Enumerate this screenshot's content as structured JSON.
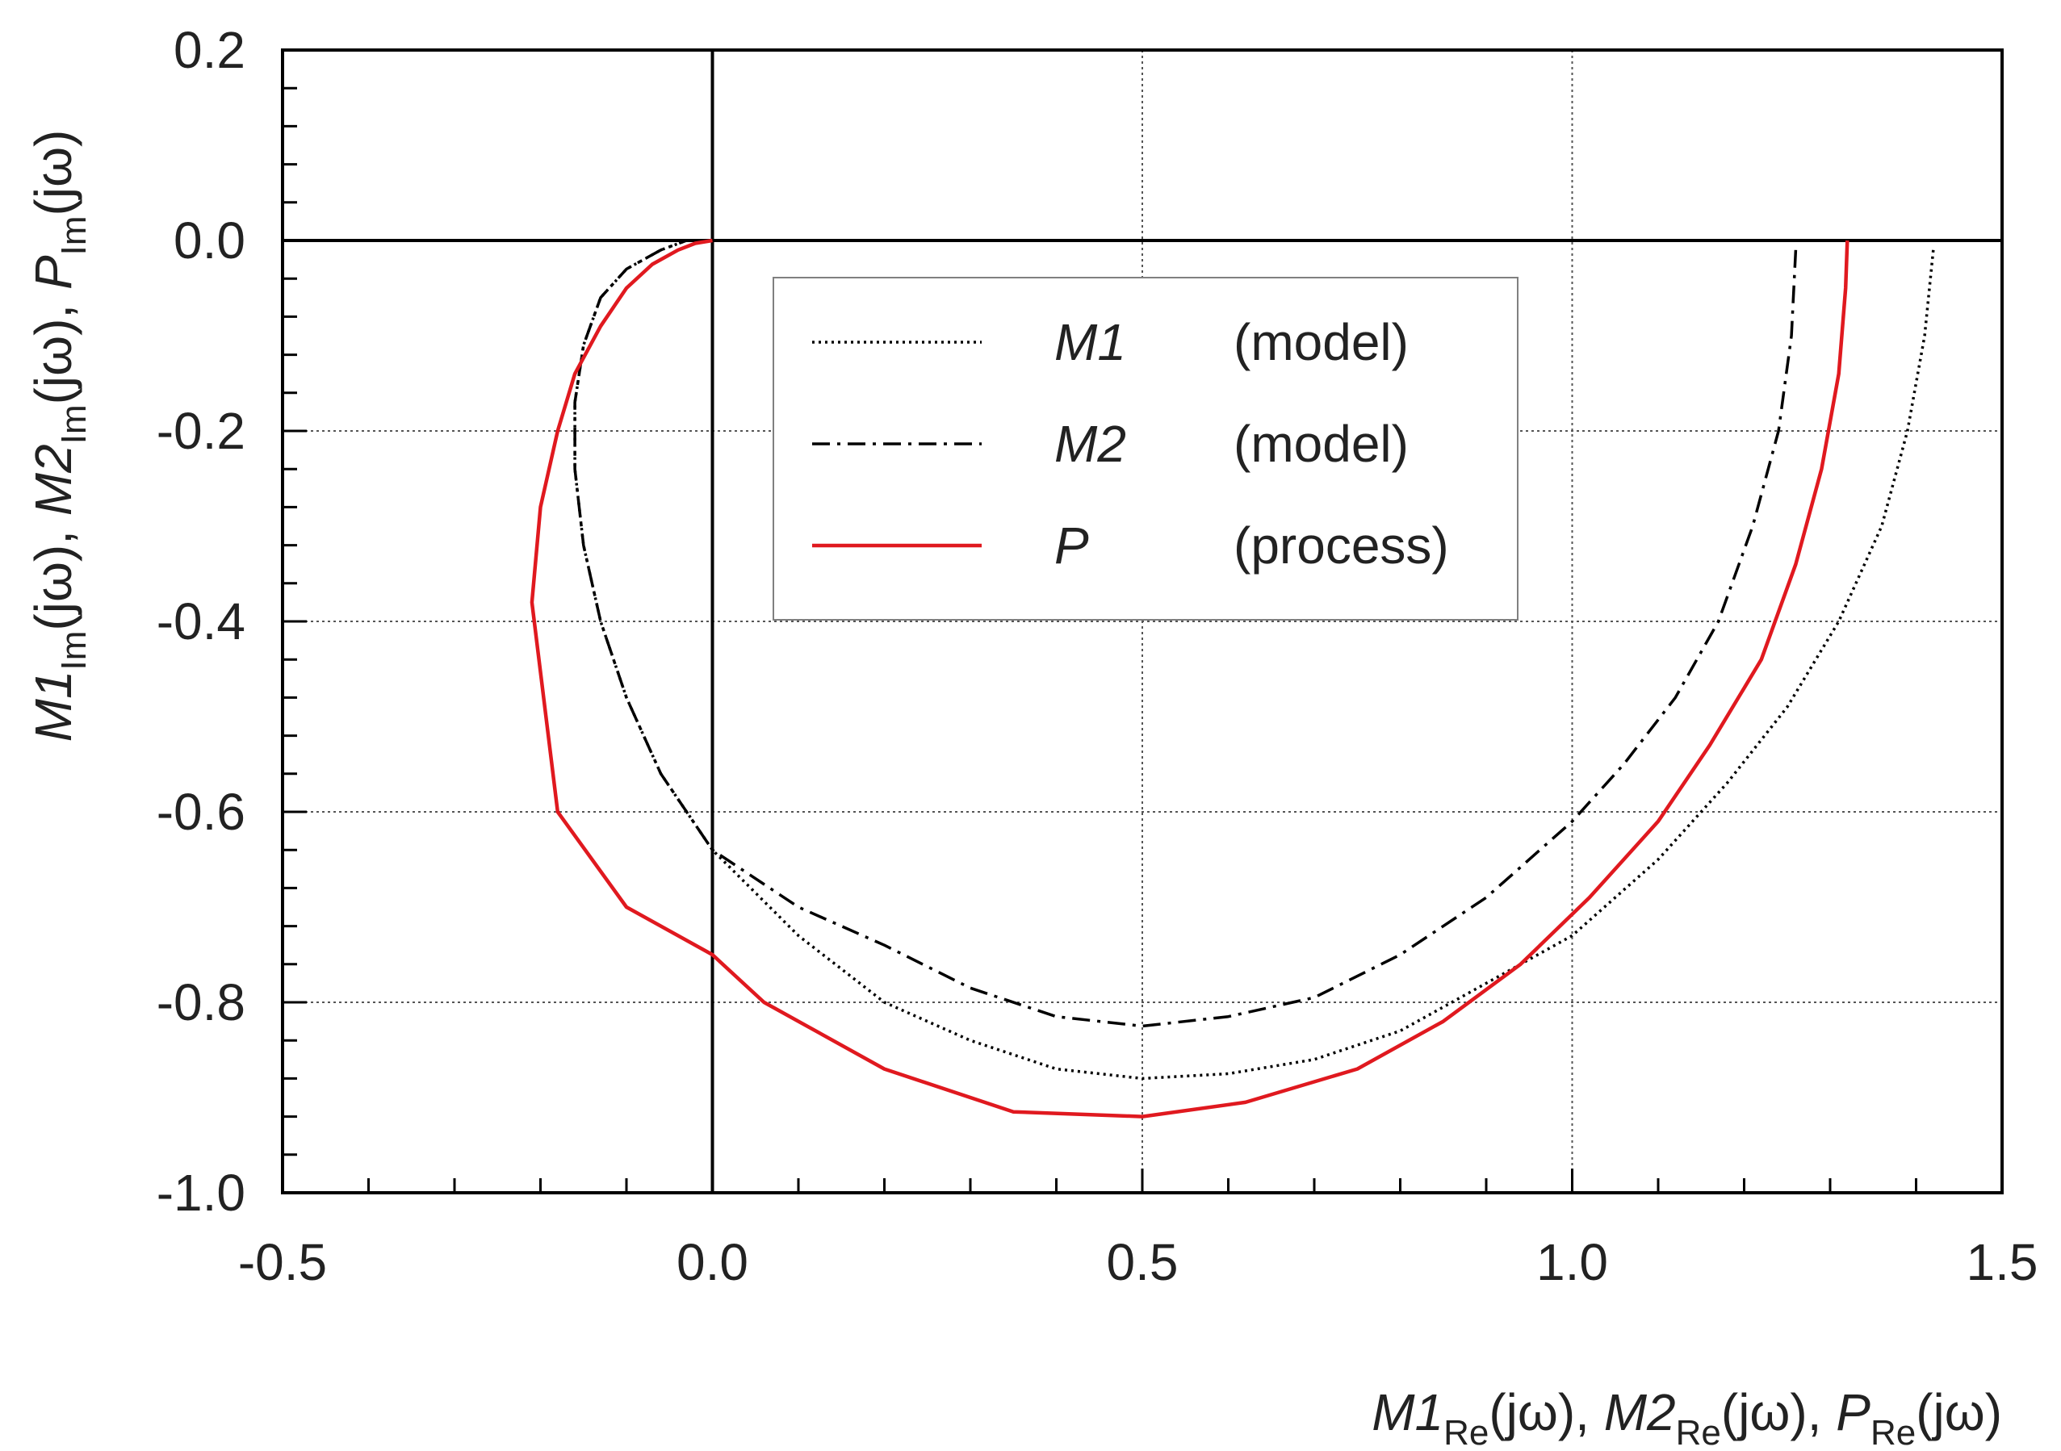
{
  "chart_data": {
    "type": "line",
    "title": "",
    "xlim": [
      -0.5,
      1.5
    ],
    "ylim": [
      -1.0,
      0.2
    ],
    "grid": true,
    "x_ticks": [
      "-0.5",
      "0.0",
      "0.5",
      "1.0",
      "1.5"
    ],
    "y_ticks": [
      "0.2",
      "0.0",
      "-0.2",
      "-0.4",
      "-0.6",
      "-0.8",
      "-1.0"
    ],
    "xlabel": {
      "m1": "M1",
      "m1_sub": "Re",
      "m1_arg": "(jω), ",
      "m2": "M2",
      "m2_sub": "Re",
      "m2_arg": "(jω), ",
      "p": "P",
      "p_sub": "Re",
      "p_arg": "(jω)"
    },
    "ylabel": {
      "m1": "M1",
      "m1_sub": "Im",
      "m1_arg": "(jω), ",
      "m2": "M2",
      "m2_sub": "Im",
      "m2_arg": "(jω), ",
      "p": "P",
      "p_sub": "Im",
      "p_arg": "(jω)"
    },
    "legend_position": "upper-center",
    "series": [
      {
        "name": "M1",
        "desc": "(model)",
        "color": "#000000",
        "style": "dotted",
        "x": [
          1.42,
          1.41,
          1.39,
          1.36,
          1.31,
          1.25,
          1.18,
          1.1,
          1.0,
          0.9,
          0.8,
          0.7,
          0.6,
          0.5,
          0.4,
          0.3,
          0.2,
          0.1,
          0.0,
          -0.06,
          -0.1,
          -0.13,
          -0.15,
          -0.16,
          -0.16,
          -0.15,
          -0.13,
          -0.1,
          -0.06,
          -0.03,
          0.0
        ],
        "y": [
          -0.01,
          -0.1,
          -0.2,
          -0.3,
          -0.4,
          -0.49,
          -0.57,
          -0.65,
          -0.73,
          -0.78,
          -0.83,
          -0.86,
          -0.875,
          -0.88,
          -0.87,
          -0.84,
          -0.8,
          -0.73,
          -0.64,
          -0.56,
          -0.48,
          -0.4,
          -0.32,
          -0.24,
          -0.17,
          -0.11,
          -0.06,
          -0.03,
          -0.01,
          0.0,
          0.0
        ]
      },
      {
        "name": "M2",
        "desc": "(model)",
        "color": "#000000",
        "style": "dashdot",
        "x": [
          1.26,
          1.255,
          1.24,
          1.21,
          1.17,
          1.12,
          1.06,
          1.0,
          0.9,
          0.8,
          0.7,
          0.6,
          0.5,
          0.4,
          0.3,
          0.2,
          0.1,
          0.0,
          -0.06,
          -0.1,
          -0.13,
          -0.15,
          -0.16,
          -0.16,
          -0.15,
          -0.13,
          -0.1,
          -0.06,
          -0.03,
          0.0
        ],
        "y": [
          -0.01,
          -0.1,
          -0.2,
          -0.3,
          -0.4,
          -0.48,
          -0.55,
          -0.61,
          -0.69,
          -0.75,
          -0.795,
          -0.815,
          -0.825,
          -0.815,
          -0.785,
          -0.74,
          -0.7,
          -0.64,
          -0.56,
          -0.48,
          -0.4,
          -0.32,
          -0.24,
          -0.17,
          -0.11,
          -0.06,
          -0.03,
          -0.01,
          0.0,
          0.0
        ]
      },
      {
        "name": "P",
        "desc": "(process)",
        "color": "#e0191f",
        "style": "solid",
        "x": [
          1.32,
          1.318,
          1.31,
          1.29,
          1.26,
          1.22,
          1.16,
          1.1,
          1.02,
          0.94,
          0.85,
          0.75,
          0.62,
          0.5,
          0.35,
          0.2,
          0.06,
          0.0,
          -0.1,
          -0.18,
          -0.21,
          -0.2,
          -0.18,
          -0.16,
          -0.13,
          -0.1,
          -0.07,
          -0.04,
          -0.02,
          0.0
        ],
        "y": [
          0.0,
          -0.05,
          -0.14,
          -0.24,
          -0.34,
          -0.44,
          -0.53,
          -0.61,
          -0.69,
          -0.76,
          -0.82,
          -0.87,
          -0.905,
          -0.92,
          -0.915,
          -0.87,
          -0.8,
          -0.75,
          -0.7,
          -0.6,
          -0.38,
          -0.28,
          -0.2,
          -0.14,
          -0.09,
          -0.05,
          -0.025,
          -0.01,
          -0.003,
          0.0
        ]
      }
    ]
  }
}
